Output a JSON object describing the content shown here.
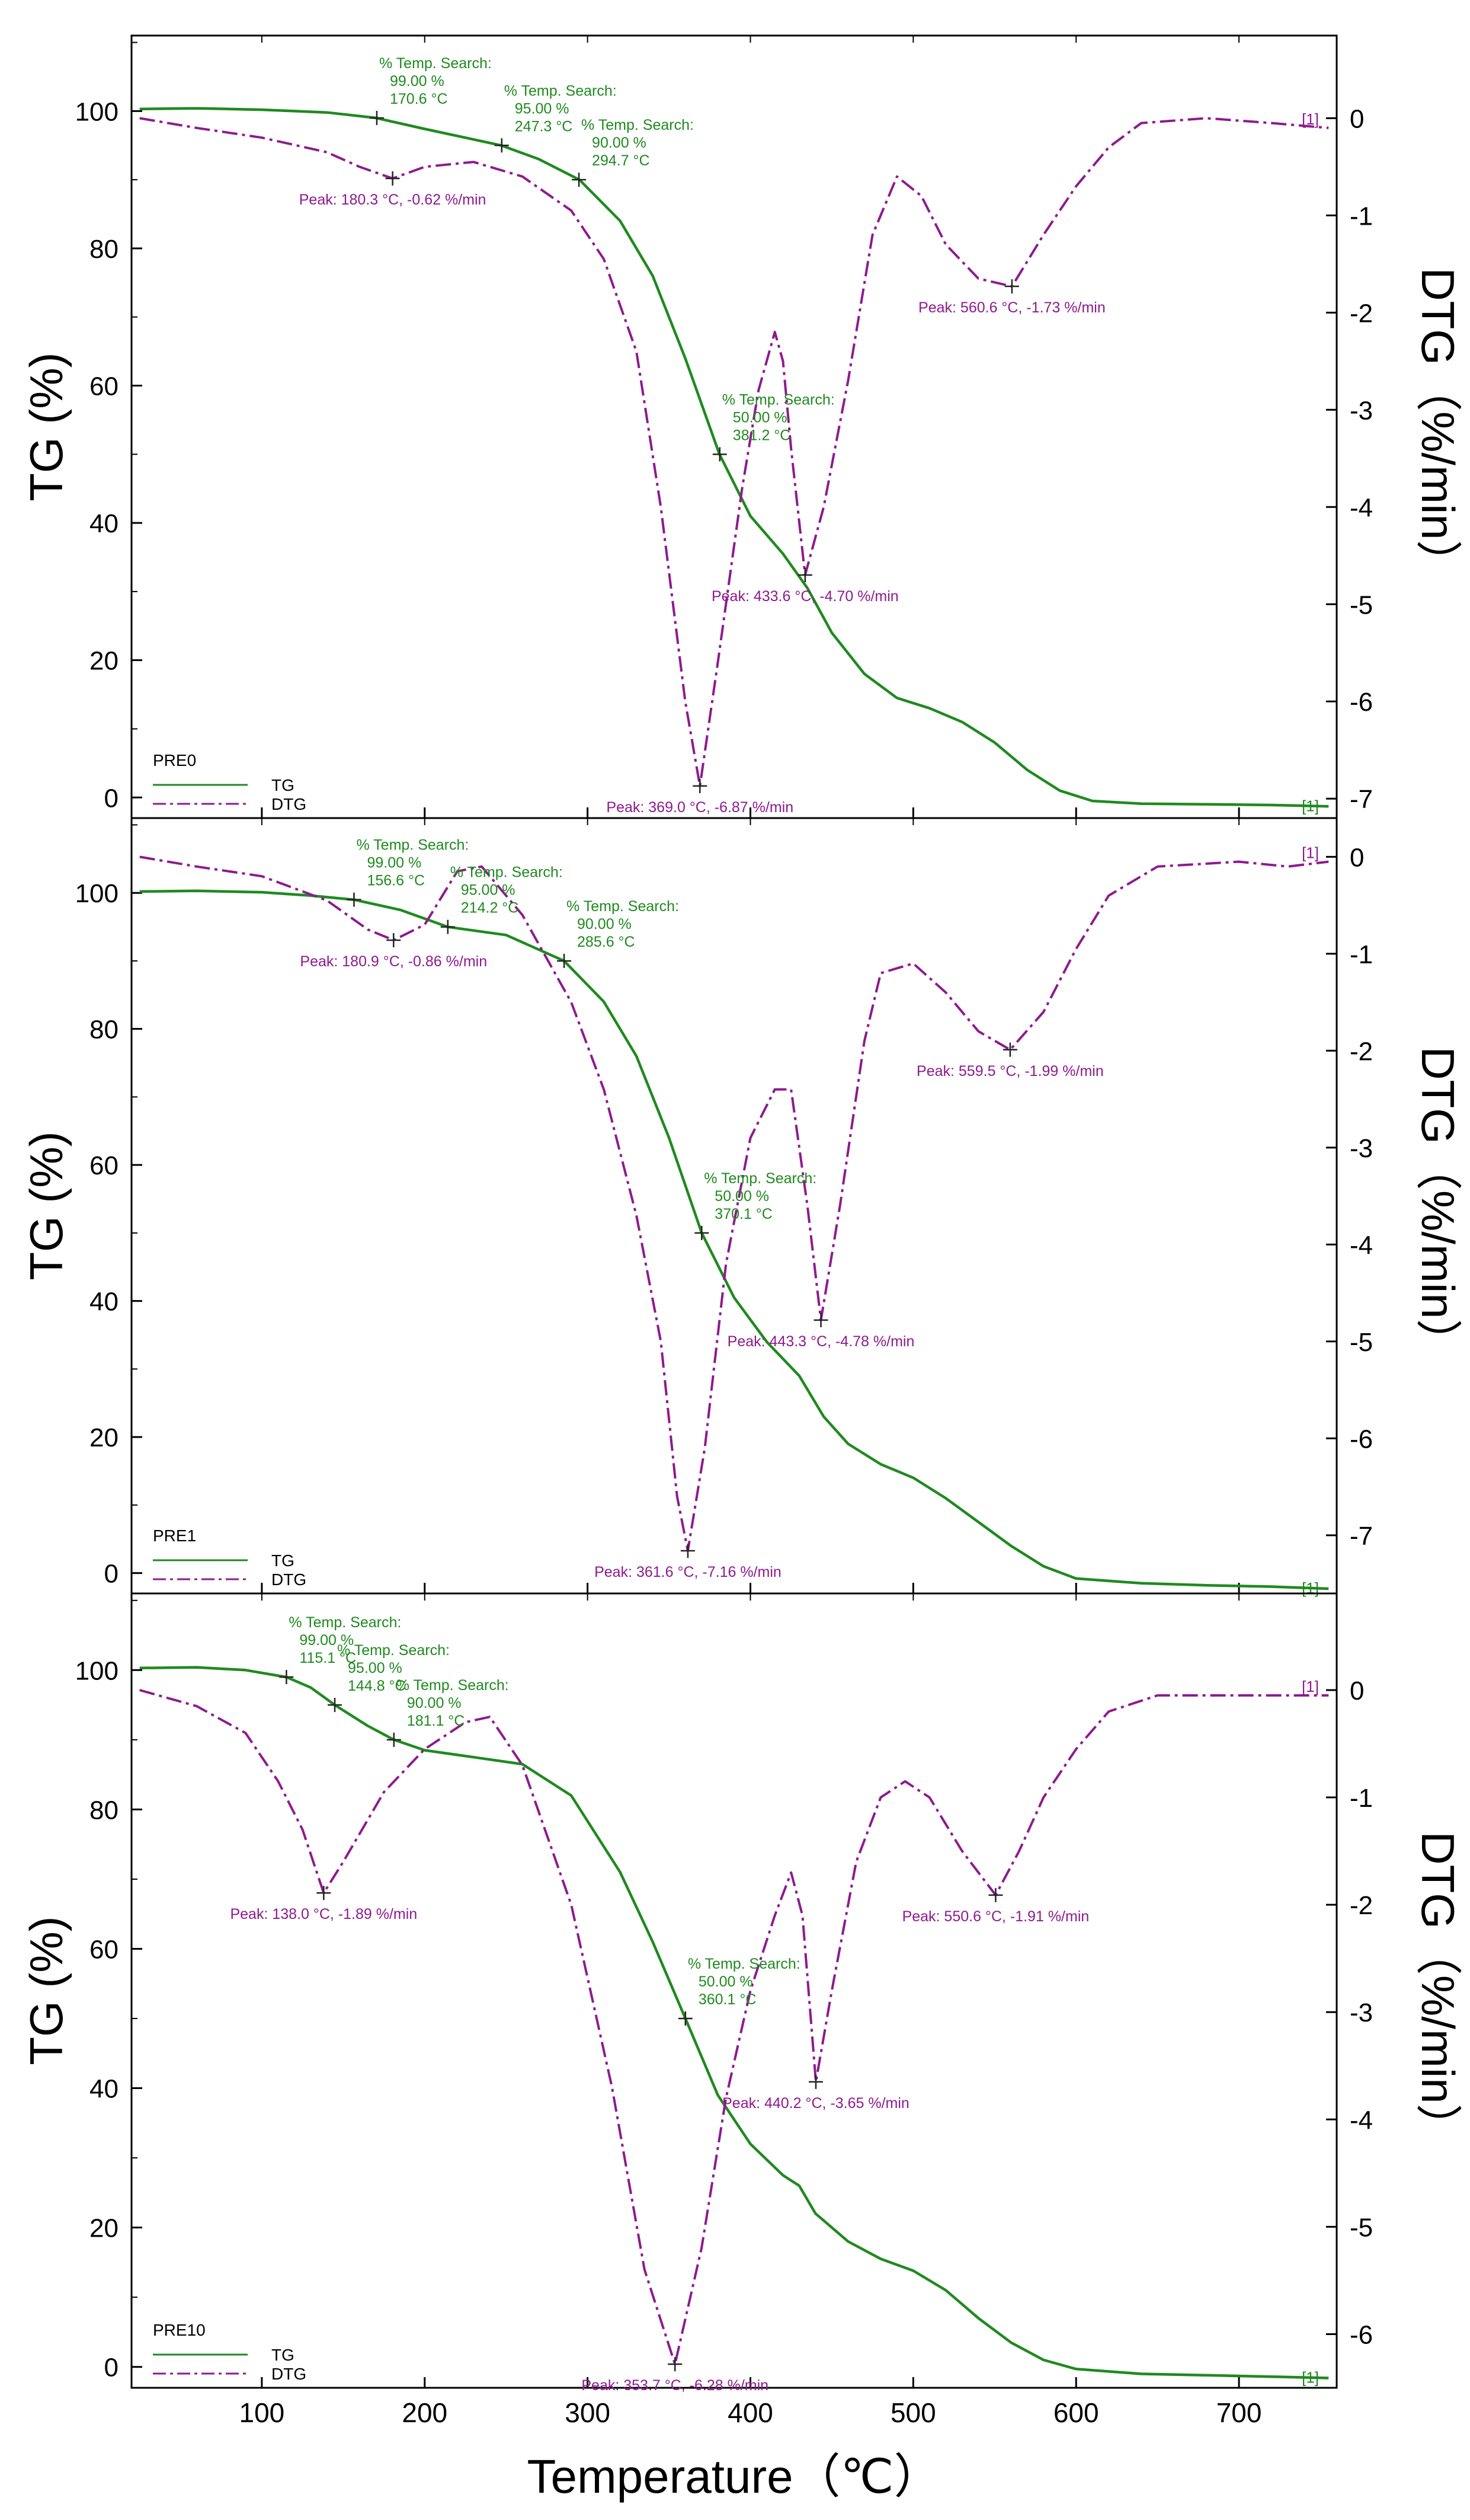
{
  "figure": {
    "xlabel": "Temperature（℃）",
    "x_ticks": [
      "100",
      "200",
      "300",
      "400",
      "500",
      "600",
      "700"
    ],
    "left_axis_label": "TG (%)",
    "right_axis_label": "DTG（%/min）",
    "curve_marker": "[1]"
  },
  "colors": {
    "tg": "#1f8a1f",
    "dtg": "#8e1a8e",
    "axis": "#000000",
    "text": "#000000"
  },
  "chart_data": [
    {
      "type": "line",
      "name": "PRE0",
      "title": "PRE0",
      "xlim": [
        20,
        760
      ],
      "ylim_left": [
        -3,
        111
      ],
      "ylim_right": [
        -7.2,
        0.85
      ],
      "left_ticks": [
        "0",
        "20",
        "40",
        "60",
        "80",
        "100"
      ],
      "right_ticks": [
        "0",
        "-1",
        "-2",
        "-3",
        "-4",
        "-5",
        "-6",
        "-7"
      ],
      "legend": [
        "TG",
        "DTG"
      ],
      "series": [
        {
          "name": "TG",
          "axis": "left",
          "x": [
            25,
            60,
            100,
            140,
            170,
            200,
            247,
            270,
            295,
            320,
            340,
            360,
            381,
            400,
            420,
            435,
            450,
            470,
            490,
            510,
            530,
            550,
            570,
            590,
            610,
            640,
            680,
            720,
            755
          ],
          "y": [
            100.3,
            100.4,
            100.2,
            99.8,
            99.0,
            97.4,
            95.0,
            93.0,
            90.0,
            84.0,
            76.0,
            64.0,
            50.0,
            41.0,
            35.5,
            30.5,
            24.0,
            18.0,
            14.5,
            13.0,
            11.0,
            8.0,
            4.0,
            1.0,
            -0.5,
            -0.9,
            -1.0,
            -1.1,
            -1.3
          ]
        },
        {
          "name": "DTG",
          "axis": "right",
          "x": [
            25,
            60,
            100,
            140,
            160,
            180.3,
            200,
            230,
            260,
            290,
            310,
            330,
            345,
            360,
            369,
            380,
            395,
            405,
            415,
            420,
            425,
            433.6,
            445,
            460,
            475,
            490,
            505,
            520,
            540,
            560.6,
            580,
            600,
            620,
            640,
            680,
            720,
            755
          ],
          "y": [
            0.0,
            -0.1,
            -0.2,
            -0.35,
            -0.5,
            -0.62,
            -0.5,
            -0.45,
            -0.6,
            -0.95,
            -1.45,
            -2.4,
            -4.0,
            -6.0,
            -6.87,
            -5.6,
            -3.8,
            -2.8,
            -2.2,
            -2.5,
            -3.4,
            -4.7,
            -4.0,
            -2.7,
            -1.2,
            -0.6,
            -0.8,
            -1.3,
            -1.65,
            -1.73,
            -1.2,
            -0.7,
            -0.3,
            -0.05,
            0.0,
            -0.05,
            -0.1
          ]
        }
      ],
      "annotations": [
        {
          "series": "TG",
          "x": 170.6,
          "y": 99.0,
          "lines": [
            "% Temp. Search:",
            "99.00 %",
            "170.6 °C"
          ]
        },
        {
          "series": "TG",
          "x": 247.3,
          "y": 95.0,
          "lines": [
            "% Temp. Search:",
            "95.00 %",
            "247.3 °C"
          ]
        },
        {
          "series": "TG",
          "x": 294.7,
          "y": 90.0,
          "lines": [
            "% Temp. Search:",
            "90.00 %",
            "294.7 °C"
          ]
        },
        {
          "series": "TG",
          "x": 381.2,
          "y": 50.0,
          "lines": [
            "% Temp. Search:",
            "50.00 %",
            "381.2 °C"
          ]
        },
        {
          "series": "DTG",
          "x": 180.3,
          "y": -0.62,
          "lines": [
            "Peak: 180.3 °C, -0.62 %/min"
          ]
        },
        {
          "series": "DTG",
          "x": 369.0,
          "y": -6.87,
          "lines": [
            "Peak: 369.0 °C, -6.87 %/min"
          ]
        },
        {
          "series": "DTG",
          "x": 433.6,
          "y": -4.7,
          "lines": [
            "Peak: 433.6 °C, -4.70 %/min"
          ]
        },
        {
          "series": "DTG",
          "x": 560.6,
          "y": -1.73,
          "lines": [
            "Peak: 560.6 °C, -1.73 %/min"
          ]
        }
      ]
    },
    {
      "type": "line",
      "name": "PRE1",
      "title": "PRE1",
      "xlim": [
        20,
        760
      ],
      "ylim_left": [
        -3,
        111
      ],
      "ylim_right": [
        -7.6,
        0.4
      ],
      "left_ticks": [
        "0",
        "20",
        "40",
        "60",
        "80",
        "100"
      ],
      "right_ticks": [
        "0",
        "-1",
        "-2",
        "-3",
        "-4",
        "-5",
        "-6",
        "-7"
      ],
      "legend": [
        "TG",
        "DTG"
      ],
      "series": [
        {
          "name": "TG",
          "axis": "left",
          "x": [
            25,
            60,
            100,
            130,
            156.6,
            185,
            214.2,
            250,
            285.6,
            310,
            330,
            350,
            370.1,
            390,
            410,
            430,
            445,
            460,
            480,
            500,
            520,
            540,
            560,
            580,
            600,
            640,
            680,
            720,
            755
          ],
          "y": [
            100.2,
            100.3,
            100.1,
            99.6,
            99.0,
            97.5,
            95.0,
            93.8,
            90.0,
            84.0,
            76.0,
            64.0,
            50.0,
            40.5,
            34.0,
            29.0,
            23.0,
            19.0,
            16.0,
            14.0,
            11.0,
            7.5,
            4.0,
            1.0,
            -0.8,
            -1.5,
            -1.8,
            -2.0,
            -2.3
          ]
        },
        {
          "name": "DTG",
          "axis": "right",
          "x": [
            25,
            60,
            100,
            140,
            165,
            180.9,
            200,
            220,
            235,
            260,
            290,
            310,
            330,
            345,
            355,
            361.6,
            372,
            385,
            400,
            415,
            425,
            435,
            443.3,
            455,
            470,
            480,
            500,
            520,
            540,
            559.5,
            580,
            600,
            620,
            650,
            700,
            730,
            755
          ],
          "y": [
            0.0,
            -0.1,
            -0.2,
            -0.45,
            -0.75,
            -0.86,
            -0.7,
            -0.15,
            -0.1,
            -0.6,
            -1.5,
            -2.4,
            -3.7,
            -5.0,
            -6.6,
            -7.16,
            -6.1,
            -4.2,
            -2.9,
            -2.4,
            -2.4,
            -3.6,
            -4.78,
            -3.6,
            -1.9,
            -1.2,
            -1.1,
            -1.4,
            -1.8,
            -1.99,
            -1.6,
            -0.95,
            -0.4,
            -0.1,
            -0.05,
            -0.1,
            -0.05
          ]
        }
      ],
      "annotations": [
        {
          "series": "TG",
          "x": 156.6,
          "y": 99.0,
          "lines": [
            "% Temp. Search:",
            "99.00 %",
            "156.6 °C"
          ]
        },
        {
          "series": "TG",
          "x": 214.2,
          "y": 95.0,
          "lines": [
            "% Temp. Search:",
            "95.00 %",
            "214.2 °C"
          ]
        },
        {
          "series": "TG",
          "x": 285.6,
          "y": 90.0,
          "lines": [
            "% Temp. Search:",
            "90.00 %",
            "285.6 °C"
          ]
        },
        {
          "series": "TG",
          "x": 370.1,
          "y": 50.0,
          "lines": [
            "% Temp. Search:",
            "50.00 %",
            "370.1 °C"
          ]
        },
        {
          "series": "DTG",
          "x": 180.9,
          "y": -0.86,
          "lines": [
            "Peak: 180.9 °C, -0.86 %/min"
          ]
        },
        {
          "series": "DTG",
          "x": 361.6,
          "y": -7.16,
          "lines": [
            "Peak: 361.6 °C, -7.16 %/min"
          ]
        },
        {
          "series": "DTG",
          "x": 443.3,
          "y": -4.78,
          "lines": [
            "Peak: 443.3 °C, -4.78 %/min"
          ]
        },
        {
          "series": "DTG",
          "x": 559.5,
          "y": -1.99,
          "lines": [
            "Peak: 559.5 °C, -1.99 %/min"
          ]
        }
      ]
    },
    {
      "type": "line",
      "name": "PRE10",
      "title": "PRE10",
      "xlim": [
        20,
        760
      ],
      "ylim_left": [
        -3,
        111
      ],
      "ylim_right": [
        -6.5,
        0.9
      ],
      "left_ticks": [
        "0",
        "20",
        "40",
        "60",
        "80",
        "100"
      ],
      "right_ticks": [
        "0",
        "-1",
        "-2",
        "-3",
        "-4",
        "-5",
        "-6"
      ],
      "legend": [
        "TG",
        "DTG"
      ],
      "series": [
        {
          "name": "TG",
          "axis": "left",
          "x": [
            25,
            60,
            90,
            115.1,
            130,
            144.8,
            165,
            181.1,
            200,
            230,
            260,
            290,
            320,
            340,
            360.1,
            380,
            400,
            420,
            430,
            440,
            460,
            480,
            500,
            520,
            540,
            560,
            580,
            600,
            640,
            680,
            720,
            755
          ],
          "y": [
            100.3,
            100.4,
            100.0,
            99.0,
            97.5,
            95.0,
            92.0,
            90.0,
            88.5,
            87.5,
            86.5,
            82.0,
            71.0,
            61.0,
            50.0,
            39.0,
            32.0,
            27.5,
            26.0,
            22.0,
            18.0,
            15.5,
            13.8,
            11.0,
            7.0,
            3.5,
            1.0,
            -0.3,
            -1.0,
            -1.2,
            -1.4,
            -1.6
          ]
        },
        {
          "name": "DTG",
          "axis": "right",
          "x": [
            25,
            60,
            90,
            110,
            125,
            138,
            150,
            175,
            200,
            225,
            240,
            260,
            290,
            315,
            335,
            353.7,
            370,
            385,
            400,
            415,
            425,
            432,
            440.2,
            450,
            465,
            480,
            495,
            510,
            530,
            550.6,
            565,
            580,
            600,
            620,
            650,
            700,
            755
          ],
          "y": [
            0.0,
            -0.15,
            -0.4,
            -0.85,
            -1.3,
            -1.89,
            -1.6,
            -0.95,
            -0.55,
            -0.3,
            -0.25,
            -0.7,
            -2.0,
            -3.7,
            -5.4,
            -6.28,
            -5.2,
            -3.8,
            -2.8,
            -2.1,
            -1.7,
            -2.1,
            -3.65,
            -2.8,
            -1.6,
            -1.0,
            -0.85,
            -1.0,
            -1.5,
            -1.91,
            -1.5,
            -1.0,
            -0.55,
            -0.2,
            -0.05,
            -0.05,
            -0.05
          ]
        }
      ],
      "annotations": [
        {
          "series": "TG",
          "x": 115.1,
          "y": 99.0,
          "lines": [
            "% Temp. Search:",
            "99.00 %",
            "115.1 °C"
          ]
        },
        {
          "series": "TG",
          "x": 144.8,
          "y": 95.0,
          "lines": [
            "% Temp. Search:",
            "95.00 %",
            "144.8 °C"
          ]
        },
        {
          "series": "TG",
          "x": 181.1,
          "y": 90.0,
          "lines": [
            "% Temp. Search:",
            "90.00 %",
            "181.1 °C"
          ]
        },
        {
          "series": "TG",
          "x": 360.1,
          "y": 50.0,
          "lines": [
            "% Temp. Search:",
            "50.00 %",
            "360.1 °C"
          ]
        },
        {
          "series": "DTG",
          "x": 138.0,
          "y": -1.89,
          "lines": [
            "Peak: 138.0 °C, -1.89 %/min"
          ]
        },
        {
          "series": "DTG",
          "x": 353.7,
          "y": -6.28,
          "lines": [
            "Peak: 353.7 °C, -6.28 %/min"
          ]
        },
        {
          "series": "DTG",
          "x": 440.2,
          "y": -3.65,
          "lines": [
            "Peak: 440.2 °C, -3.65 %/min"
          ]
        },
        {
          "series": "DTG",
          "x": 550.6,
          "y": -1.91,
          "lines": [
            "Peak: 550.6 °C, -1.91 %/min"
          ]
        }
      ]
    }
  ]
}
